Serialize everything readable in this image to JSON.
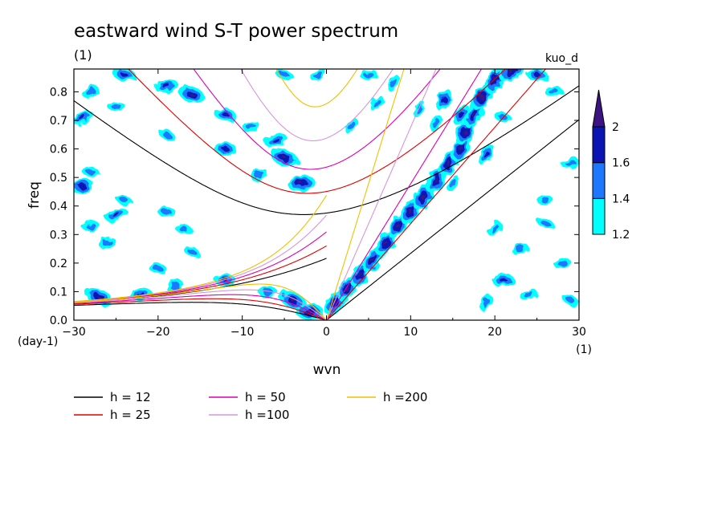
{
  "chart_data": {
    "type": "heatmap",
    "title": "eastward wind S-T power spectrum",
    "subtitle": "(1)",
    "annotation_right": "kuo_d",
    "xlabel": "wvn",
    "ylabel": "freq",
    "x_unit": "(1)",
    "y_unit": "(day-1)",
    "xlim": [
      -30,
      30
    ],
    "ylim": [
      0,
      0.88
    ],
    "x_ticks": [
      -30,
      -20,
      -10,
      0,
      10,
      20,
      30
    ],
    "x_tick_labels": [
      "−30",
      "−20",
      "−10",
      "0",
      "10",
      "20",
      "30"
    ],
    "y_ticks": [
      0.0,
      0.1,
      0.2,
      0.3,
      0.4,
      0.5,
      0.6,
      0.7,
      0.8
    ],
    "y_tick_labels": [
      "0.0",
      "0.1",
      "0.2",
      "0.3",
      "0.4",
      "0.5",
      "0.6",
      "0.7",
      "0.8"
    ],
    "colorbar": {
      "levels": [
        1.2,
        1.4,
        1.6,
        2
      ],
      "level_labels": [
        "1.2",
        "1.4",
        "1.6",
        "2"
      ],
      "colors": [
        "#00ffff",
        "#1e78ff",
        "#0a14b4",
        "#3c1482"
      ],
      "extend": "max"
    },
    "series": [
      {
        "name": "h = 12",
        "h": 12,
        "color": "#000000"
      },
      {
        "name": "h = 25",
        "h": 25,
        "color": "#e00000"
      },
      {
        "name": "h = 50",
        "h": 50,
        "color": "#dc00b4"
      },
      {
        "name": "h =100",
        "h": 100,
        "color": "#d496dc"
      },
      {
        "name": "h =200",
        "h": 200,
        "color": "#f0c000"
      }
    ],
    "curve_families": [
      "Kelvin",
      "equatorial Rossby n=1",
      "inertia-gravity n=1",
      "mixed Rossby-gravity"
    ],
    "spectral_blobs": [
      {
        "x": -28,
        "y": 0.8,
        "level": 1
      },
      {
        "x": -24,
        "y": 0.86,
        "level": 2
      },
      {
        "x": -19,
        "y": 0.82,
        "level": 2
      },
      {
        "x": -16,
        "y": 0.79,
        "level": 3
      },
      {
        "x": -25,
        "y": 0.75,
        "level": 1
      },
      {
        "x": -29,
        "y": 0.71,
        "level": 2
      },
      {
        "x": -12,
        "y": 0.72,
        "level": 2
      },
      {
        "x": -9,
        "y": 0.68,
        "level": 1
      },
      {
        "x": -19,
        "y": 0.65,
        "level": 1
      },
      {
        "x": -12,
        "y": 0.6,
        "level": 2
      },
      {
        "x": -6,
        "y": 0.63,
        "level": 2
      },
      {
        "x": -5,
        "y": 0.57,
        "level": 3
      },
      {
        "x": -3,
        "y": 0.48,
        "level": 3
      },
      {
        "x": -8,
        "y": 0.51,
        "level": 1
      },
      {
        "x": -28,
        "y": 0.52,
        "level": 1
      },
      {
        "x": -29,
        "y": 0.47,
        "level": 2
      },
      {
        "x": -24,
        "y": 0.42,
        "level": 1
      },
      {
        "x": -19,
        "y": 0.38,
        "level": 1
      },
      {
        "x": -25,
        "y": 0.37,
        "level": 2
      },
      {
        "x": -17,
        "y": 0.32,
        "level": 1
      },
      {
        "x": -28,
        "y": 0.33,
        "level": 1
      },
      {
        "x": -16,
        "y": 0.24,
        "level": 1
      },
      {
        "x": -20,
        "y": 0.18,
        "level": 1
      },
      {
        "x": -26,
        "y": 0.27,
        "level": 1
      },
      {
        "x": -27,
        "y": 0.08,
        "level": 3
      },
      {
        "x": -22,
        "y": 0.09,
        "level": 2
      },
      {
        "x": -18,
        "y": 0.12,
        "level": 1
      },
      {
        "x": -12,
        "y": 0.14,
        "level": 2
      },
      {
        "x": -7,
        "y": 0.1,
        "level": 1
      },
      {
        "x": -4,
        "y": 0.07,
        "level": 3
      },
      {
        "x": -2,
        "y": 0.03,
        "level": 3
      },
      {
        "x": -1,
        "y": 0.86,
        "level": 1
      },
      {
        "x": -5,
        "y": 0.86,
        "level": 1
      },
      {
        "x": 5,
        "y": 0.86,
        "level": 1
      },
      {
        "x": 8,
        "y": 0.83,
        "level": 1
      },
      {
        "x": 3,
        "y": 0.68,
        "level": 1
      },
      {
        "x": 6,
        "y": 0.76,
        "level": 1
      },
      {
        "x": 1,
        "y": 0.06,
        "level": 3
      },
      {
        "x": 2.5,
        "y": 0.11,
        "level": 3
      },
      {
        "x": 4,
        "y": 0.16,
        "level": 3
      },
      {
        "x": 5.5,
        "y": 0.21,
        "level": 3
      },
      {
        "x": 7,
        "y": 0.27,
        "level": 3
      },
      {
        "x": 8.5,
        "y": 0.33,
        "level": 3
      },
      {
        "x": 10,
        "y": 0.38,
        "level": 3
      },
      {
        "x": 11.5,
        "y": 0.43,
        "level": 3
      },
      {
        "x": 13,
        "y": 0.49,
        "level": 3
      },
      {
        "x": 14.5,
        "y": 0.55,
        "level": 3
      },
      {
        "x": 16,
        "y": 0.6,
        "level": 3
      },
      {
        "x": 16.5,
        "y": 0.66,
        "level": 3
      },
      {
        "x": 17.5,
        "y": 0.72,
        "level": 3
      },
      {
        "x": 18.5,
        "y": 0.78,
        "level": 3
      },
      {
        "x": 20,
        "y": 0.84,
        "level": 3
      },
      {
        "x": 22,
        "y": 0.87,
        "level": 3
      },
      {
        "x": 25,
        "y": 0.86,
        "level": 2
      },
      {
        "x": 14,
        "y": 0.77,
        "level": 2
      },
      {
        "x": 13,
        "y": 0.69,
        "level": 1
      },
      {
        "x": 19,
        "y": 0.58,
        "level": 2
      },
      {
        "x": 16,
        "y": 0.72,
        "level": 2
      },
      {
        "x": 21,
        "y": 0.71,
        "level": 1
      },
      {
        "x": 27,
        "y": 0.8,
        "level": 1
      },
      {
        "x": 15,
        "y": 0.48,
        "level": 1
      },
      {
        "x": 20,
        "y": 0.32,
        "level": 1
      },
      {
        "x": 23,
        "y": 0.25,
        "level": 1
      },
      {
        "x": 26,
        "y": 0.34,
        "level": 1
      },
      {
        "x": 21,
        "y": 0.14,
        "level": 2
      },
      {
        "x": 24,
        "y": 0.09,
        "level": 1
      },
      {
        "x": 19,
        "y": 0.06,
        "level": 1
      },
      {
        "x": 28,
        "y": 0.2,
        "level": 1
      },
      {
        "x": 29,
        "y": 0.07,
        "level": 1
      },
      {
        "x": 26,
        "y": 0.42,
        "level": 1
      },
      {
        "x": 29,
        "y": 0.55,
        "level": 1
      },
      {
        "x": 11,
        "y": 0.74,
        "level": 1
      }
    ]
  }
}
